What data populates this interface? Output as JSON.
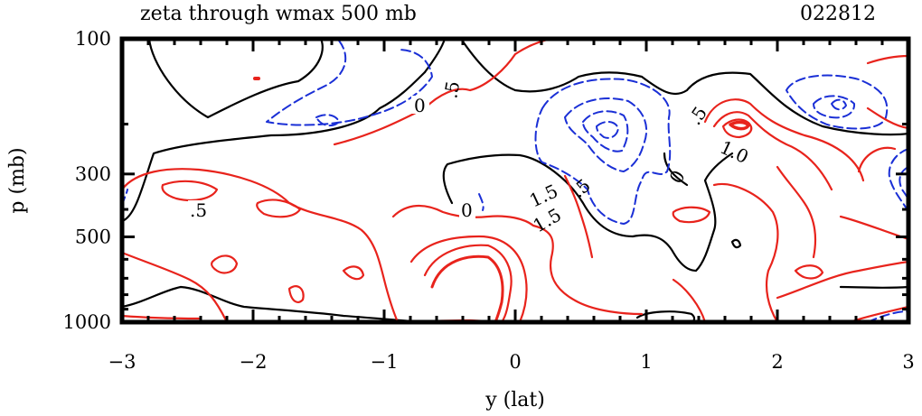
{
  "chart_data": {
    "type": "contour",
    "title": "zeta through wmax 500 mb",
    "run_id": "022812",
    "xlabel": "y (lat)",
    "ylabel": "p (mb)",
    "xlim": [
      -3,
      3
    ],
    "ylim": [
      1000,
      100
    ],
    "y_scale": "log",
    "x_ticks": [
      -3,
      -2,
      -1,
      0,
      1,
      2,
      3
    ],
    "x_tick_labels": [
      "−3",
      "−2",
      "−1",
      "0",
      "1",
      "2",
      "3"
    ],
    "y_ticks": [
      100,
      300,
      500,
      1000
    ],
    "y_tick_labels": [
      "100",
      "300",
      "500",
      "1000"
    ],
    "contour_labels": [
      {
        "text": ".5",
        "x": -2.4,
        "p": 380
      },
      {
        "text": "0",
        "x": -0.75,
        "p": 155
      },
      {
        "text": ".5",
        "x": -0.45,
        "p": 130
      },
      {
        "text": "0",
        "x": -0.4,
        "p": 390
      },
      {
        "text": "1.5",
        "x": 0.15,
        "p": 370
      },
      {
        "text": "1.5",
        "x": 0.15,
        "p": 430
      },
      {
        "text": ".5",
        "x": 0.47,
        "p": 330
      },
      {
        "text": "0",
        "x": 1.28,
        "p": 300
      },
      {
        "text": ".5",
        "x": 1.42,
        "p": 165
      },
      {
        "text": "1.0",
        "x": 1.62,
        "p": 220
      }
    ],
    "colors": {
      "positive": "#e8231c",
      "zero": "#000000",
      "negative": "#1a2fd6",
      "frame": "#000000"
    }
  }
}
